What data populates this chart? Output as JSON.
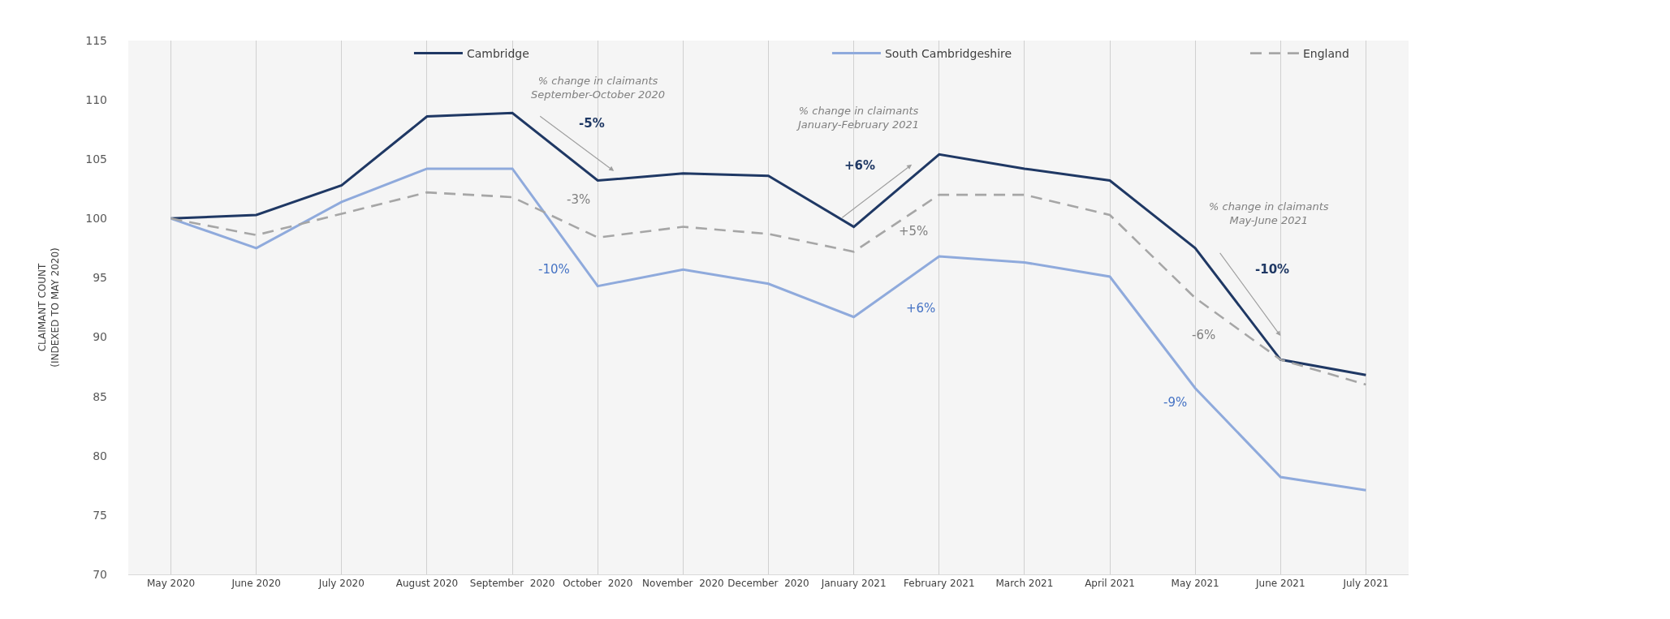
{
  "chart_data": {
    "type": "line",
    "ylabel": "CLAIMANT COUNT\n(INDEXED TO MAY 2020)",
    "categories": [
      "May 2020",
      "June 2020",
      "July 2020",
      "August 2020",
      "September  2020",
      "October  2020",
      "November  2020",
      "December  2020",
      "January 2021",
      "February 2021",
      "March 2021",
      "April 2021",
      "May 2021",
      "June 2021",
      "July 2021"
    ],
    "series": [
      {
        "name": "Cambridge",
        "color": "#1f3864",
        "values": [
          100,
          100.3,
          102.8,
          108.6,
          108.9,
          103.2,
          103.8,
          103.6,
          99.3,
          105.4,
          104.2,
          103.2,
          97.5,
          88.1,
          86.8
        ]
      },
      {
        "name": "South Cambridgeshire",
        "color": "#8faadc",
        "values": [
          100,
          97.5,
          101.4,
          104.2,
          104.2,
          94.3,
          95.7,
          94.5,
          91.7,
          96.8,
          96.3,
          95.1,
          85.7,
          78.2,
          77.1
        ]
      },
      {
        "name": "England",
        "color": "#a6a6a6",
        "line_style": "dashed",
        "values": [
          100,
          98.6,
          100.4,
          102.2,
          101.8,
          98.4,
          99.3,
          98.7,
          97.2,
          102.0,
          102.0,
          100.3,
          93.3,
          88.1,
          86.0
        ]
      }
    ],
    "ylim": [
      70,
      115
    ],
    "yticks": [
      70,
      75,
      80,
      85,
      90,
      95,
      100,
      105,
      110,
      115
    ],
    "grid": "x",
    "legend": "top",
    "marker": "none",
    "annotations": [
      "% change in claimants\nSeptember-October 2020",
      "-5%",
      "-3%",
      "-10%",
      "% change in claimants\nJanuary-February 2021",
      "+6%",
      "+5%",
      "+6%",
      "% change in claimants\nMay-June 2021",
      "-10%",
      "-6%",
      "-9%"
    ]
  }
}
